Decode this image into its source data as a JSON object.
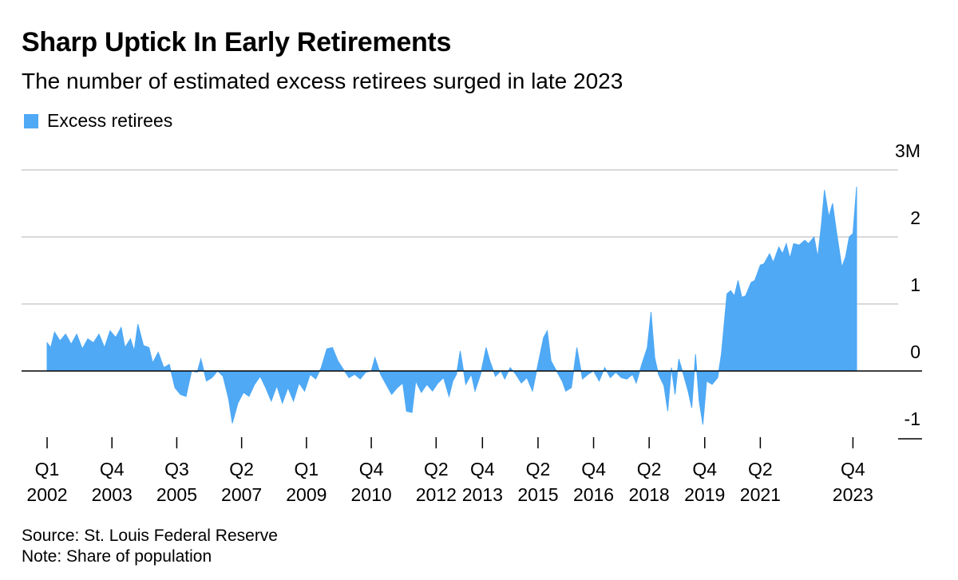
{
  "title": "Sharp Uptick In Early Retirements",
  "subtitle": "The number of estimated excess retirees surged in late 2023",
  "source": "Source: St. Louis Federal Reserve",
  "note": "Note: Share of population",
  "colors": {
    "area": "#4fa9f5",
    "grid": "#d9d9d9",
    "axis": "#000000"
  },
  "chart_data": {
    "type": "area",
    "series": [
      {
        "name": "Excess retirees",
        "unit": "M"
      }
    ],
    "legend": "top-left",
    "grid": true,
    "ylim": [
      -1,
      3
    ],
    "yticks": [
      {
        "value": 3,
        "label": "3M"
      },
      {
        "value": 2,
        "label": "2"
      },
      {
        "value": 1,
        "label": "1"
      },
      {
        "value": 0,
        "label": "0"
      },
      {
        "value": -1,
        "label": "-1"
      }
    ],
    "xlim": [
      2002.0,
      2024.0
    ],
    "xticks": [
      {
        "value": 2002.0,
        "quarter": "Q1",
        "year": "2002"
      },
      {
        "value": 2003.75,
        "quarter": "Q4",
        "year": "2003"
      },
      {
        "value": 2005.5,
        "quarter": "Q3",
        "year": "2005"
      },
      {
        "value": 2007.25,
        "quarter": "Q2",
        "year": "2007"
      },
      {
        "value": 2009.0,
        "quarter": "Q1",
        "year": "2009"
      },
      {
        "value": 2010.75,
        "quarter": "Q4",
        "year": "2010"
      },
      {
        "value": 2012.5,
        "quarter": "Q2",
        "year": "2012"
      },
      {
        "value": 2013.75,
        "quarter": "Q4",
        "year": "2013"
      },
      {
        "value": 2015.25,
        "quarter": "Q2",
        "year": "2015"
      },
      {
        "value": 2016.75,
        "quarter": "Q4",
        "year": "2016"
      },
      {
        "value": 2018.25,
        "quarter": "Q2",
        "year": "2018"
      },
      {
        "value": 2019.75,
        "quarter": "Q4",
        "year": "2019"
      },
      {
        "value": 2021.25,
        "quarter": "Q2",
        "year": "2021"
      },
      {
        "value": 2023.75,
        "quarter": "Q4",
        "year": "2023"
      }
    ],
    "points": [
      [
        2002.0,
        0.42
      ],
      [
        2002.1,
        0.35
      ],
      [
        2002.2,
        0.58
      ],
      [
        2002.35,
        0.45
      ],
      [
        2002.5,
        0.55
      ],
      [
        2002.65,
        0.4
      ],
      [
        2002.8,
        0.55
      ],
      [
        2002.95,
        0.33
      ],
      [
        2003.1,
        0.48
      ],
      [
        2003.25,
        0.42
      ],
      [
        2003.4,
        0.55
      ],
      [
        2003.55,
        0.35
      ],
      [
        2003.7,
        0.6
      ],
      [
        2003.85,
        0.5
      ],
      [
        2004.0,
        0.65
      ],
      [
        2004.1,
        0.35
      ],
      [
        2004.25,
        0.48
      ],
      [
        2004.35,
        0.3
      ],
      [
        2004.45,
        0.7
      ],
      [
        2004.6,
        0.38
      ],
      [
        2004.75,
        0.35
      ],
      [
        2004.85,
        0.12
      ],
      [
        2005.0,
        0.28
      ],
      [
        2005.15,
        0.05
      ],
      [
        2005.3,
        0.1
      ],
      [
        2005.45,
        -0.25
      ],
      [
        2005.6,
        -0.35
      ],
      [
        2005.75,
        -0.38
      ],
      [
        2005.9,
        0.0
      ],
      [
        2006.05,
        -0.02
      ],
      [
        2006.15,
        0.18
      ],
      [
        2006.3,
        -0.15
      ],
      [
        2006.45,
        -0.1
      ],
      [
        2006.6,
        0.0
      ],
      [
        2006.75,
        -0.08
      ],
      [
        2006.9,
        -0.42
      ],
      [
        2007.0,
        -0.78
      ],
      [
        2007.15,
        -0.48
      ],
      [
        2007.3,
        -0.32
      ],
      [
        2007.45,
        -0.38
      ],
      [
        2007.6,
        -0.2
      ],
      [
        2007.75,
        -0.08
      ],
      [
        2007.9,
        -0.25
      ],
      [
        2008.05,
        -0.45
      ],
      [
        2008.2,
        -0.22
      ],
      [
        2008.35,
        -0.48
      ],
      [
        2008.5,
        -0.25
      ],
      [
        2008.65,
        -0.45
      ],
      [
        2008.8,
        -0.18
      ],
      [
        2008.95,
        -0.3
      ],
      [
        2009.1,
        -0.05
      ],
      [
        2009.25,
        -0.12
      ],
      [
        2009.4,
        0.05
      ],
      [
        2009.55,
        0.33
      ],
      [
        2009.7,
        0.35
      ],
      [
        2009.85,
        0.15
      ],
      [
        2010.0,
        0.02
      ],
      [
        2010.15,
        -0.1
      ],
      [
        2010.3,
        -0.05
      ],
      [
        2010.45,
        -0.12
      ],
      [
        2010.6,
        -0.02
      ],
      [
        2010.75,
        0.0
      ],
      [
        2010.85,
        0.2
      ],
      [
        2011.0,
        -0.05
      ],
      [
        2011.15,
        -0.2
      ],
      [
        2011.3,
        -0.35
      ],
      [
        2011.45,
        -0.25
      ],
      [
        2011.6,
        -0.18
      ],
      [
        2011.7,
        -0.6
      ],
      [
        2011.85,
        -0.62
      ],
      [
        2011.95,
        -0.15
      ],
      [
        2012.1,
        -0.32
      ],
      [
        2012.25,
        -0.2
      ],
      [
        2012.4,
        -0.3
      ],
      [
        2012.55,
        -0.18
      ],
      [
        2012.7,
        -0.1
      ],
      [
        2012.85,
        -0.38
      ],
      [
        2012.95,
        -0.15
      ],
      [
        2013.05,
        -0.05
      ],
      [
        2013.15,
        0.3
      ],
      [
        2013.3,
        -0.2
      ],
      [
        2013.45,
        -0.05
      ],
      [
        2013.55,
        -0.3
      ],
      [
        2013.7,
        -0.05
      ],
      [
        2013.85,
        0.35
      ],
      [
        2013.95,
        0.15
      ],
      [
        2014.1,
        -0.08
      ],
      [
        2014.25,
        0.0
      ],
      [
        2014.35,
        -0.12
      ],
      [
        2014.5,
        0.05
      ],
      [
        2014.65,
        -0.05
      ],
      [
        2014.8,
        -0.18
      ],
      [
        2014.95,
        -0.1
      ],
      [
        2015.1,
        -0.3
      ],
      [
        2015.25,
        0.1
      ],
      [
        2015.4,
        0.5
      ],
      [
        2015.5,
        0.6
      ],
      [
        2015.6,
        0.15
      ],
      [
        2015.75,
        0.0
      ],
      [
        2015.9,
        -0.15
      ],
      [
        2016.0,
        -0.3
      ],
      [
        2016.15,
        -0.25
      ],
      [
        2016.3,
        0.35
      ],
      [
        2016.45,
        -0.12
      ],
      [
        2016.6,
        -0.05
      ],
      [
        2016.75,
        0.0
      ],
      [
        2016.9,
        -0.15
      ],
      [
        2017.05,
        0.05
      ],
      [
        2017.2,
        -0.1
      ],
      [
        2017.35,
        -0.02
      ],
      [
        2017.5,
        -0.1
      ],
      [
        2017.65,
        -0.12
      ],
      [
        2017.8,
        -0.05
      ],
      [
        2017.9,
        -0.18
      ],
      [
        2018.05,
        0.1
      ],
      [
        2018.2,
        0.35
      ],
      [
        2018.3,
        0.88
      ],
      [
        2018.4,
        0.2
      ],
      [
        2018.5,
        -0.05
      ],
      [
        2018.65,
        -0.22
      ],
      [
        2018.75,
        -0.6
      ],
      [
        2018.85,
        0.05
      ],
      [
        2018.95,
        -0.35
      ],
      [
        2019.05,
        0.18
      ],
      [
        2019.2,
        -0.1
      ],
      [
        2019.3,
        -0.3
      ],
      [
        2019.4,
        -0.55
      ],
      [
        2019.5,
        0.25
      ],
      [
        2019.6,
        -0.45
      ],
      [
        2019.7,
        -0.8
      ],
      [
        2019.8,
        -0.15
      ],
      [
        2019.95,
        -0.2
      ],
      [
        2020.1,
        -0.1
      ],
      [
        2020.2,
        0.25
      ],
      [
        2020.35,
        1.15
      ],
      [
        2020.45,
        1.2
      ],
      [
        2020.55,
        1.12
      ],
      [
        2020.65,
        1.35
      ],
      [
        2020.75,
        1.1
      ],
      [
        2020.85,
        1.12
      ],
      [
        2021.0,
        1.32
      ],
      [
        2021.1,
        1.35
      ],
      [
        2021.25,
        1.58
      ],
      [
        2021.35,
        1.6
      ],
      [
        2021.5,
        1.75
      ],
      [
        2021.6,
        1.62
      ],
      [
        2021.75,
        1.85
      ],
      [
        2021.85,
        1.75
      ],
      [
        2021.95,
        1.9
      ],
      [
        2022.05,
        1.68
      ],
      [
        2022.15,
        1.9
      ],
      [
        2022.3,
        1.88
      ],
      [
        2022.45,
        1.95
      ],
      [
        2022.55,
        1.9
      ],
      [
        2022.7,
        2.0
      ],
      [
        2022.8,
        1.7
      ],
      [
        2022.9,
        2.2
      ],
      [
        2022.98,
        2.7
      ],
      [
        2023.1,
        2.3
      ],
      [
        2023.2,
        2.5
      ],
      [
        2023.3,
        2.1
      ],
      [
        2023.45,
        1.55
      ],
      [
        2023.55,
        1.7
      ],
      [
        2023.65,
        2.0
      ],
      [
        2023.75,
        2.05
      ],
      [
        2023.85,
        2.75
      ]
    ]
  }
}
